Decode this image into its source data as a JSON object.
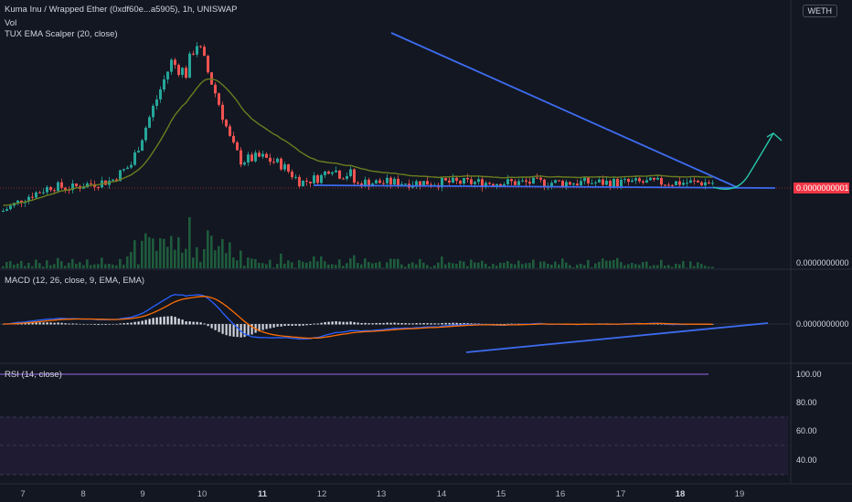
{
  "header": {
    "symbol": "Kuma Inu / Wrapped Ether (0xdf60e...a5905), 1h, UNISWAP",
    "vol_label": "Vol",
    "indicator_ema": "TUX EMA Scalper (20, close)",
    "quote_badge": "WETH"
  },
  "price_pane": {
    "current_price_label": "0.0000000001",
    "zero_label": "0.0000000000"
  },
  "macd_pane": {
    "title": "MACD (12, 26, close, 9, EMA, EMA)",
    "value_label": "0.0000000000"
  },
  "rsi_pane": {
    "title": "RSI (14, close)",
    "levels": [
      "100.00",
      "80.00",
      "60.00",
      "40.00"
    ]
  },
  "x_axis": {
    "ticks": [
      {
        "label": "7",
        "bold": false
      },
      {
        "label": "8",
        "bold": false
      },
      {
        "label": "9",
        "bold": false
      },
      {
        "label": "10",
        "bold": false
      },
      {
        "label": "11",
        "bold": true
      },
      {
        "label": "12",
        "bold": false
      },
      {
        "label": "13",
        "bold": false
      },
      {
        "label": "14",
        "bold": false
      },
      {
        "label": "15",
        "bold": false
      },
      {
        "label": "16",
        "bold": false
      },
      {
        "label": "17",
        "bold": false
      },
      {
        "label": "18",
        "bold": true
      },
      {
        "label": "19",
        "bold": false
      }
    ]
  },
  "colors": {
    "background": "#131722",
    "up": "#26a69a",
    "down": "#ef5350",
    "ema_line": "#6b7d1e",
    "trendline": "#3d6cf0",
    "projection": "#27c6a8",
    "macd_line": "#2962ff",
    "signal_line": "#ff6d00",
    "rsi_line": "#7e57c2"
  },
  "chart_data": {
    "type": "candlestick",
    "x_labels": [
      "7",
      "8",
      "9",
      "10",
      "11",
      "12",
      "13",
      "14",
      "15",
      "16",
      "17",
      "18",
      "19"
    ],
    "price_path": [
      [
        0,
        0.5
      ],
      [
        5,
        0.9
      ],
      [
        10,
        1.2
      ],
      [
        14,
        1.15
      ],
      [
        17,
        1.25
      ],
      [
        22,
        1.35
      ],
      [
        26,
        1.8
      ],
      [
        30,
        3.2
      ],
      [
        34,
        4.6
      ],
      [
        37,
        4.3
      ],
      [
        39,
        5.2
      ],
      [
        42,
        4.1
      ],
      [
        44,
        3.3
      ],
      [
        46,
        2.4
      ],
      [
        48,
        1.9
      ],
      [
        52,
        2.0
      ],
      [
        56,
        1.8
      ],
      [
        60,
        1.3
      ],
      [
        64,
        1.45
      ],
      [
        66,
        1.75
      ],
      [
        68,
        1.5
      ],
      [
        70,
        1.55
      ],
      [
        71,
        1.2
      ],
      [
        72,
        1.3
      ]
    ],
    "ema_period": 20,
    "annotations": [
      "descending triangle",
      "projected breakout arrow",
      "rising trendline on MACD"
    ],
    "rsi_levels": [
      100,
      80,
      60,
      40
    ]
  }
}
